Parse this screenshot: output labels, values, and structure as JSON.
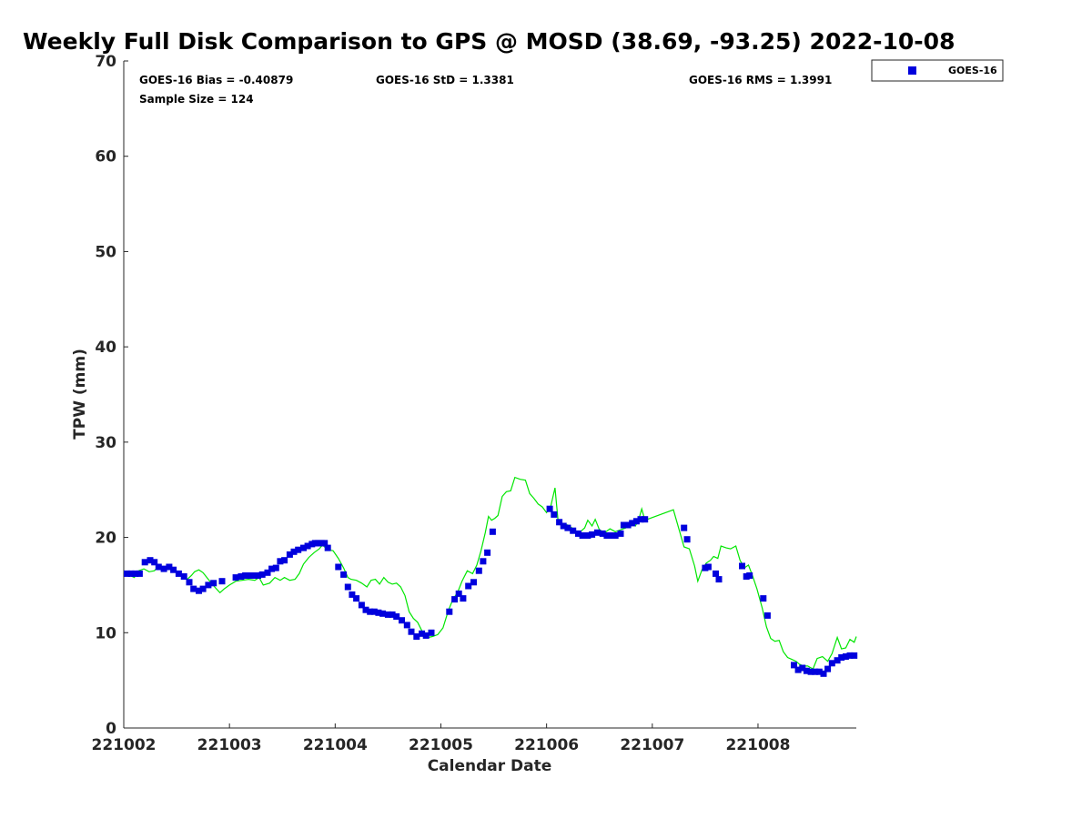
{
  "chart_data": {
    "type": "scatter",
    "title": "Weekly Full Disk Comparison to GPS @ MOSD (38.69, -93.25) 2022-10-08",
    "xlabel": "Calendar Date",
    "ylabel": "TPW (mm)",
    "xlim": [
      221002,
      221008.93
    ],
    "ylim": [
      0,
      70
    ],
    "x_ticks": [
      221002,
      221003,
      221004,
      221005,
      221006,
      221007,
      221008
    ],
    "x_tick_labels": [
      "221002",
      "221003",
      "221004",
      "221005",
      "221006",
      "221007",
      "221008"
    ],
    "y_ticks": [
      0,
      10,
      20,
      30,
      40,
      50,
      60,
      70
    ],
    "y_tick_labels": [
      "0",
      "10",
      "20",
      "30",
      "40",
      "50",
      "60",
      "70"
    ],
    "stats": {
      "bias": "GOES-16 Bias = -0.40879",
      "std": "GOES-16 StD = 1.3381",
      "rms": "GOES-16 RMS = 1.3991",
      "sample": "Sample Size = 124"
    },
    "legend": {
      "label": "GOES-16",
      "position": "top-right, outside plot"
    },
    "series": [
      {
        "name": "GOES-16",
        "kind": "scatter",
        "color": "#0000dd",
        "points": [
          [
            221002.03,
            16.2
          ],
          [
            221002.07,
            16.2
          ],
          [
            221002.11,
            16.2
          ],
          [
            221002.15,
            16.2
          ],
          [
            221002.2,
            17.4
          ],
          [
            221002.25,
            17.6
          ],
          [
            221002.29,
            17.4
          ],
          [
            221002.33,
            16.9
          ],
          [
            221002.38,
            16.7
          ],
          [
            221002.43,
            16.9
          ],
          [
            221002.47,
            16.6
          ],
          [
            221002.52,
            16.2
          ],
          [
            221002.57,
            15.9
          ],
          [
            221002.62,
            15.3
          ],
          [
            221002.66,
            14.6
          ],
          [
            221002.71,
            14.4
          ],
          [
            221002.75,
            14.6
          ],
          [
            221002.8,
            15.0
          ],
          [
            221002.85,
            15.2
          ],
          [
            221002.93,
            15.4
          ],
          [
            221003.06,
            15.8
          ],
          [
            221003.11,
            15.9
          ],
          [
            221003.15,
            16.0
          ],
          [
            221003.19,
            16.0
          ],
          [
            221003.23,
            16.0
          ],
          [
            221003.27,
            16.0
          ],
          [
            221003.31,
            16.1
          ],
          [
            221003.36,
            16.3
          ],
          [
            221003.4,
            16.7
          ],
          [
            221003.44,
            16.8
          ],
          [
            221003.48,
            17.5
          ],
          [
            221003.52,
            17.6
          ],
          [
            221003.57,
            18.2
          ],
          [
            221003.61,
            18.5
          ],
          [
            221003.65,
            18.7
          ],
          [
            221003.7,
            18.9
          ],
          [
            221003.74,
            19.1
          ],
          [
            221003.78,
            19.3
          ],
          [
            221003.81,
            19.4
          ],
          [
            221003.84,
            19.4
          ],
          [
            221003.87,
            19.4
          ],
          [
            221003.9,
            19.4
          ],
          [
            221003.93,
            18.9
          ],
          [
            221004.03,
            16.9
          ],
          [
            221004.08,
            16.1
          ],
          [
            221004.12,
            14.8
          ],
          [
            221004.16,
            14.0
          ],
          [
            221004.2,
            13.6
          ],
          [
            221004.25,
            12.9
          ],
          [
            221004.29,
            12.4
          ],
          [
            221004.33,
            12.2
          ],
          [
            221004.37,
            12.2
          ],
          [
            221004.41,
            12.1
          ],
          [
            221004.45,
            12.0
          ],
          [
            221004.5,
            11.9
          ],
          [
            221004.54,
            11.9
          ],
          [
            221004.58,
            11.7
          ],
          [
            221004.63,
            11.3
          ],
          [
            221004.68,
            10.8
          ],
          [
            221004.72,
            10.1
          ],
          [
            221004.77,
            9.6
          ],
          [
            221004.82,
            9.9
          ],
          [
            221004.86,
            9.7
          ],
          [
            221004.91,
            10.0
          ],
          [
            221005.08,
            12.2
          ],
          [
            221005.13,
            13.5
          ],
          [
            221005.17,
            14.1
          ],
          [
            221005.21,
            13.6
          ],
          [
            221005.26,
            14.9
          ],
          [
            221005.31,
            15.3
          ],
          [
            221005.36,
            16.5
          ],
          [
            221005.4,
            17.5
          ],
          [
            221005.44,
            18.4
          ],
          [
            221005.49,
            20.6
          ],
          [
            221006.03,
            23.0
          ],
          [
            221006.07,
            22.4
          ],
          [
            221006.12,
            21.6
          ],
          [
            221006.16,
            21.2
          ],
          [
            221006.2,
            21.0
          ],
          [
            221006.25,
            20.7
          ],
          [
            221006.3,
            20.4
          ],
          [
            221006.34,
            20.2
          ],
          [
            221006.39,
            20.2
          ],
          [
            221006.43,
            20.3
          ],
          [
            221006.48,
            20.5
          ],
          [
            221006.53,
            20.4
          ],
          [
            221006.57,
            20.2
          ],
          [
            221006.61,
            20.2
          ],
          [
            221006.65,
            20.2
          ],
          [
            221006.7,
            20.4
          ],
          [
            221006.73,
            21.3
          ],
          [
            221006.77,
            21.3
          ],
          [
            221006.81,
            21.5
          ],
          [
            221006.85,
            21.7
          ],
          [
            221006.89,
            21.9
          ],
          [
            221006.93,
            21.9
          ],
          [
            221007.3,
            21.0
          ],
          [
            221007.33,
            19.8
          ],
          [
            221007.5,
            16.8
          ],
          [
            221007.53,
            16.9
          ],
          [
            221007.6,
            16.2
          ],
          [
            221007.63,
            15.6
          ],
          [
            221007.85,
            17.0
          ],
          [
            221007.89,
            15.9
          ],
          [
            221007.92,
            16.0
          ],
          [
            221008.05,
            13.6
          ],
          [
            221008.09,
            11.8
          ],
          [
            221008.34,
            6.6
          ],
          [
            221008.38,
            6.1
          ],
          [
            221008.42,
            6.3
          ],
          [
            221008.46,
            6.0
          ],
          [
            221008.5,
            5.9
          ],
          [
            221008.54,
            5.9
          ],
          [
            221008.58,
            5.9
          ],
          [
            221008.62,
            5.7
          ],
          [
            221008.66,
            6.2
          ],
          [
            221008.7,
            6.8
          ],
          [
            221008.75,
            7.1
          ],
          [
            221008.79,
            7.4
          ],
          [
            221008.83,
            7.5
          ],
          [
            221008.87,
            7.6
          ],
          [
            221008.91,
            7.6
          ]
        ]
      },
      {
        "name": "GPS",
        "kind": "line",
        "color": "#00e600",
        "points": [
          [
            221002.0,
            16.4
          ],
          [
            221002.06,
            16.0
          ],
          [
            221002.1,
            15.8
          ],
          [
            221002.14,
            16.5
          ],
          [
            221002.19,
            16.7
          ],
          [
            221002.24,
            16.4
          ],
          [
            221002.29,
            16.5
          ],
          [
            221002.33,
            17.0
          ],
          [
            221002.38,
            16.8
          ],
          [
            221002.43,
            16.9
          ],
          [
            221002.48,
            16.5
          ],
          [
            221002.52,
            16.1
          ],
          [
            221002.56,
            16.0
          ],
          [
            221002.6,
            15.6
          ],
          [
            221002.64,
            16.0
          ],
          [
            221002.67,
            16.4
          ],
          [
            221002.71,
            16.6
          ],
          [
            221002.75,
            16.3
          ],
          [
            221002.8,
            15.6
          ],
          [
            221002.86,
            14.8
          ],
          [
            221002.91,
            14.2
          ],
          [
            221002.95,
            14.6
          ],
          [
            221003.0,
            15.0
          ],
          [
            221003.06,
            15.4
          ],
          [
            221003.12,
            15.5
          ],
          [
            221003.18,
            15.6
          ],
          [
            221003.24,
            15.5
          ],
          [
            221003.28,
            15.8
          ],
          [
            221003.32,
            15.0
          ],
          [
            221003.38,
            15.2
          ],
          [
            221003.43,
            15.8
          ],
          [
            221003.48,
            15.5
          ],
          [
            221003.52,
            15.8
          ],
          [
            221003.57,
            15.5
          ],
          [
            221003.62,
            15.6
          ],
          [
            221003.66,
            16.2
          ],
          [
            221003.7,
            17.2
          ],
          [
            221003.75,
            17.9
          ],
          [
            221003.8,
            18.4
          ],
          [
            221003.85,
            18.8
          ],
          [
            221003.88,
            19.2
          ],
          [
            221003.93,
            18.7
          ],
          [
            221003.98,
            18.6
          ],
          [
            221004.03,
            17.8
          ],
          [
            221004.08,
            16.8
          ],
          [
            221004.12,
            15.8
          ],
          [
            221004.15,
            15.6
          ],
          [
            221004.2,
            15.5
          ],
          [
            221004.25,
            15.2
          ],
          [
            221004.3,
            14.8
          ],
          [
            221004.34,
            15.5
          ],
          [
            221004.38,
            15.6
          ],
          [
            221004.42,
            15.1
          ],
          [
            221004.46,
            15.8
          ],
          [
            221004.5,
            15.3
          ],
          [
            221004.54,
            15.1
          ],
          [
            221004.58,
            15.2
          ],
          [
            221004.62,
            14.8
          ],
          [
            221004.66,
            13.9
          ],
          [
            221004.7,
            12.2
          ],
          [
            221004.74,
            11.5
          ],
          [
            221004.78,
            11.1
          ],
          [
            221004.82,
            10.2
          ],
          [
            221004.85,
            9.8
          ],
          [
            221004.88,
            9.5
          ],
          [
            221004.92,
            9.6
          ],
          [
            221004.97,
            9.8
          ],
          [
            221005.02,
            10.5
          ],
          [
            221005.07,
            12.3
          ],
          [
            221005.11,
            13.4
          ],
          [
            221005.16,
            14.3
          ],
          [
            221005.2,
            15.4
          ],
          [
            221005.25,
            16.5
          ],
          [
            221005.3,
            16.2
          ],
          [
            221005.34,
            17.1
          ],
          [
            221005.38,
            18.6
          ],
          [
            221005.42,
            20.5
          ],
          [
            221005.45,
            22.2
          ],
          [
            221005.48,
            21.8
          ],
          [
            221005.51,
            22.0
          ],
          [
            221005.54,
            22.3
          ],
          [
            221005.58,
            24.3
          ],
          [
            221005.62,
            24.8
          ],
          [
            221005.66,
            24.9
          ],
          [
            221005.7,
            26.3
          ],
          [
            221005.75,
            26.1
          ],
          [
            221005.8,
            26.0
          ],
          [
            221005.84,
            24.6
          ],
          [
            221005.88,
            24.1
          ],
          [
            221005.92,
            23.5
          ],
          [
            221005.96,
            23.2
          ],
          [
            221006.0,
            22.6
          ],
          [
            221006.04,
            23.3
          ],
          [
            221006.08,
            25.2
          ],
          [
            221006.11,
            21.6
          ],
          [
            221006.15,
            21.4
          ],
          [
            221006.2,
            21.3
          ],
          [
            221006.24,
            21.0
          ],
          [
            221006.28,
            20.4
          ],
          [
            221006.32,
            20.6
          ],
          [
            221006.36,
            21.0
          ],
          [
            221006.39,
            21.8
          ],
          [
            221006.43,
            21.2
          ],
          [
            221006.46,
            21.9
          ],
          [
            221006.5,
            20.8
          ],
          [
            221006.55,
            20.5
          ],
          [
            221006.6,
            20.9
          ],
          [
            221006.65,
            20.6
          ],
          [
            221006.7,
            20.8
          ],
          [
            221006.75,
            21.0
          ],
          [
            221006.8,
            21.7
          ],
          [
            221006.84,
            21.2
          ],
          [
            221006.87,
            21.8
          ],
          [
            221006.9,
            23.0
          ],
          [
            221006.93,
            21.8
          ],
          [
            221007.2,
            22.9
          ],
          [
            221007.3,
            19.0
          ],
          [
            221007.35,
            18.8
          ],
          [
            221007.4,
            17.0
          ],
          [
            221007.43,
            15.4
          ],
          [
            221007.47,
            16.6
          ],
          [
            221007.51,
            17.3
          ],
          [
            221007.55,
            17.6
          ],
          [
            221007.58,
            18.0
          ],
          [
            221007.62,
            17.8
          ],
          [
            221007.65,
            19.1
          ],
          [
            221007.7,
            18.9
          ],
          [
            221007.74,
            18.8
          ],
          [
            221007.79,
            19.1
          ],
          [
            221007.83,
            17.6
          ],
          [
            221007.87,
            16.8
          ],
          [
            221007.91,
            17.1
          ],
          [
            221007.95,
            15.9
          ],
          [
            221007.99,
            14.6
          ],
          [
            221008.04,
            12.6
          ],
          [
            221008.08,
            10.6
          ],
          [
            221008.12,
            9.4
          ],
          [
            221008.16,
            9.1
          ],
          [
            221008.2,
            9.2
          ],
          [
            221008.24,
            8.0
          ],
          [
            221008.28,
            7.4
          ],
          [
            221008.32,
            7.2
          ],
          [
            221008.36,
            7.0
          ],
          [
            221008.39,
            6.7
          ],
          [
            221008.43,
            6.5
          ],
          [
            221008.47,
            6.5
          ],
          [
            221008.52,
            6.2
          ],
          [
            221008.56,
            7.3
          ],
          [
            221008.61,
            7.5
          ],
          [
            221008.66,
            7.0
          ],
          [
            221008.7,
            7.8
          ],
          [
            221008.75,
            9.5
          ],
          [
            221008.79,
            8.3
          ],
          [
            221008.83,
            8.4
          ],
          [
            221008.87,
            9.3
          ],
          [
            221008.91,
            9.0
          ],
          [
            221008.93,
            9.6
          ]
        ]
      }
    ]
  }
}
